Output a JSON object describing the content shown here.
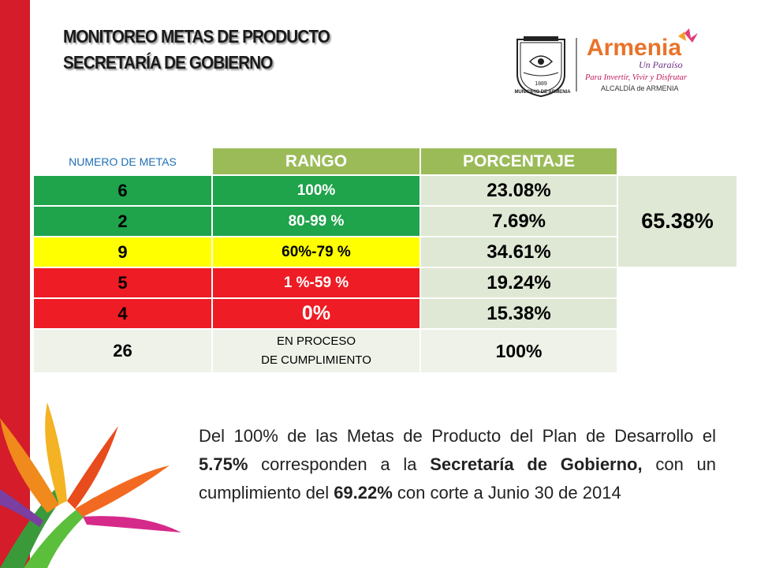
{
  "title": {
    "line1": "MONITOREO METAS DE PRODUCTO",
    "line2": "SECRETARÍA DE GOBIERNO"
  },
  "logos": {
    "seal_year": "1889",
    "seal_caption": "MUNICIPIO DE ARMENIA",
    "brand_name": "Armenia",
    "brand_sub": "Un Paraíso",
    "brand_tagline": "Para Invertir, Vivir y Disfrutar",
    "brand_office": "ALCALDÍA de ARMENIA"
  },
  "table": {
    "headers": [
      "NUMERO DE METAS",
      "RANGO",
      "PORCENTAJE"
    ],
    "rows": [
      {
        "metas": "6",
        "rango": "100%",
        "porcentaje": "23.08%"
      },
      {
        "metas": "2",
        "rango": "80-99  %",
        "porcentaje": "7.69%"
      },
      {
        "metas": "9",
        "rango": "60%-79 %",
        "porcentaje": "34.61%"
      },
      {
        "metas": "5",
        "rango": "1  %-59 %",
        "porcentaje": "19.24%"
      },
      {
        "metas": "4",
        "rango": "0%",
        "porcentaje": "15.38%"
      },
      {
        "metas": "26",
        "rango_line1": "EN PROCESO",
        "rango_line2": "DE  CUMPLIMIENTO",
        "porcentaje": "100%"
      }
    ],
    "summary_percentage": "65.38%"
  },
  "paragraph": {
    "t1": "Del 100% de las Metas de Producto del Plan de Desarrollo el ",
    "b1": "5.75%",
    "t2": " corresponden a la  ",
    "b2": "Secretaría de Gobierno,",
    "t3": " con un cumplimiento del  ",
    "b3": "69.22%",
    "t4": " con corte a Junio 30 de 2014"
  },
  "colors": {
    "accent_red": "#d41c2a",
    "header_green": "#9bbb59",
    "status_green": "#1fa34b",
    "status_yellow": "#ffff00",
    "status_red": "#ee1c24"
  }
}
